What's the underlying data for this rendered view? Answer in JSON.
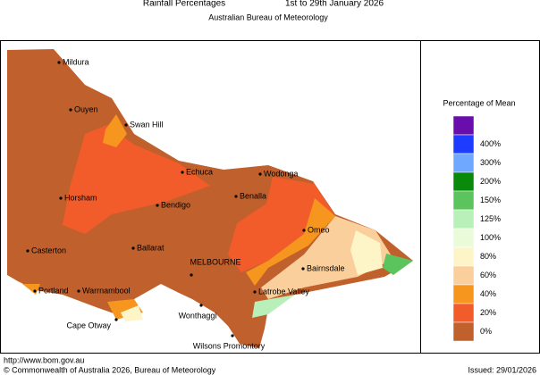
{
  "header": {
    "title": "Rainfall Percentages",
    "period": "1st to 29th January 2026",
    "subtitle": "Australian Bureau of Meteorology"
  },
  "map": {
    "places": [
      "Mildura",
      "Ouyen",
      "Swan Hill",
      "Echuca",
      "Wodonga",
      "Horsham",
      "Bendigo",
      "Benalla",
      "Omeo",
      "Casterton",
      "Ballarat",
      "MELBOURNE",
      "Bairnsdale",
      "Portland",
      "Warrnambool",
      "Latrobe Valley",
      "Cape Otway",
      "Wonthaggi",
      "Wilsons Promontory"
    ]
  },
  "legend": {
    "title": "Percentage of Mean",
    "colors": [
      "#6a0dad",
      "#1e3cff",
      "#6fa8ff",
      "#0a8a0a",
      "#5cc45c",
      "#b9f0b9",
      "#e9fbd9",
      "#fdf5c8",
      "#fbcf9b",
      "#f7961f",
      "#f25c2a",
      "#c0602c"
    ],
    "labels": [
      "400%",
      "300%",
      "200%",
      "150%",
      "125%",
      "100%",
      "80%",
      "60%",
      "40%",
      "20%",
      "0%"
    ]
  },
  "footer": {
    "url": "http://www.bom.gov.au",
    "copyright": "© Commonwealth of Australia 2026, Bureau of Meteorology",
    "issued": "Issued: 29/01/2026"
  }
}
